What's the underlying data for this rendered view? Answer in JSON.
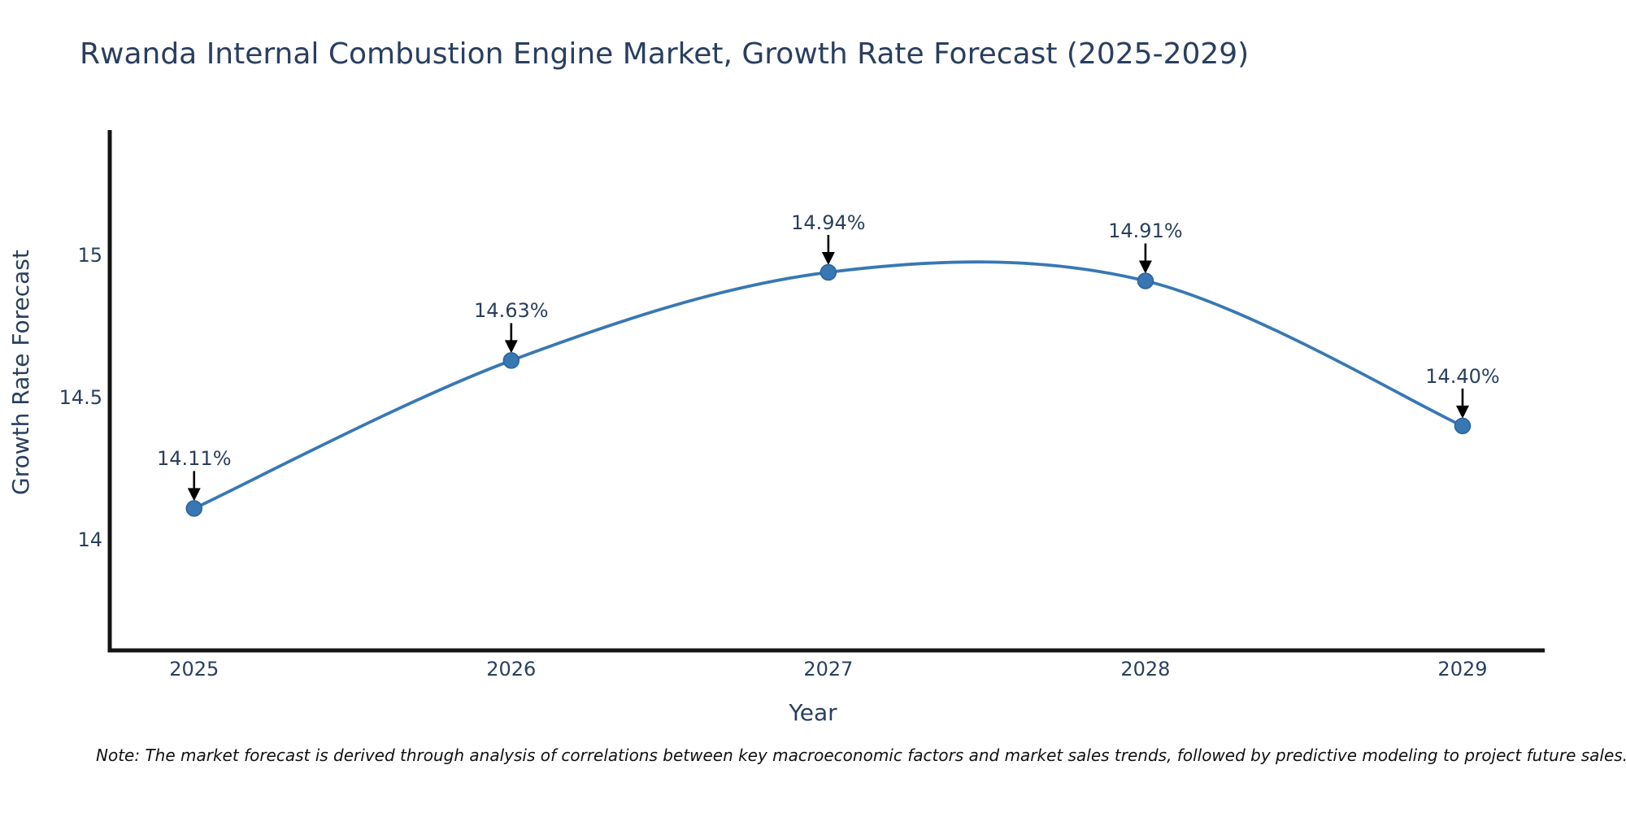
{
  "chart_data": {
    "type": "line",
    "title": "Rwanda Internal Combustion Engine Market, Growth Rate Forecast (2025-2029)",
    "xlabel": "Year",
    "ylabel": "Growth Rate Forecast",
    "x": [
      2025,
      2026,
      2027,
      2028,
      2029
    ],
    "y": [
      14.11,
      14.63,
      14.94,
      14.91,
      14.4
    ],
    "point_labels": [
      "14.11%",
      "14.63%",
      "14.94%",
      "14.91%",
      "14.40%"
    ],
    "line_shape": "spline",
    "grid": false,
    "legend_position": "none",
    "xlim": [
      2024.734,
      2029.259
    ],
    "ylim": [
      13.611,
      15.44
    ],
    "xticks": {
      "values": [
        2025,
        2026,
        2027,
        2028,
        2029
      ],
      "labels": [
        "2025",
        "2026",
        "2027",
        "2028",
        "2029"
      ]
    },
    "yticks": {
      "values": [
        14,
        14.5,
        15
      ],
      "labels": [
        "14",
        "14.5",
        "15"
      ]
    },
    "colors": {
      "line": "#3878b4",
      "marker": "#3777b3",
      "marker_edge": "#2d639c",
      "arrow": "#000000",
      "axis": "#141414",
      "text": "#2a3f5f",
      "background": "#ffffff"
    },
    "note": "Note: The market forecast is derived through analysis of correlations between key macroeconomic factors and market sales trends, followed by predictive modeling to project future sales."
  }
}
